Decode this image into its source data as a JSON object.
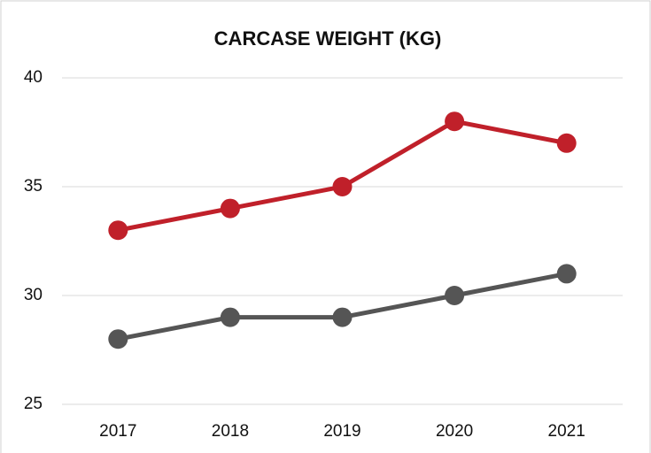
{
  "chart_data": {
    "type": "line",
    "title": "CARCASE WEIGHT (KG)",
    "categories": [
      "2017",
      "2018",
      "2019",
      "2020",
      "2021"
    ],
    "series": [
      {
        "color": "#c0202a",
        "values": [
          33,
          34,
          35,
          38,
          37
        ]
      },
      {
        "color": "#555555",
        "values": [
          28,
          29,
          29,
          30,
          31
        ]
      }
    ],
    "ylim": [
      25,
      40
    ],
    "yticks": [
      25,
      30,
      35,
      40
    ],
    "grid": true
  }
}
